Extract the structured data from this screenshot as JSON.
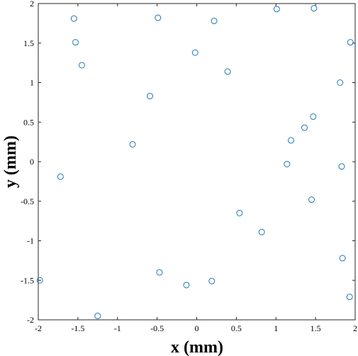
{
  "chart_data": {
    "type": "scatter",
    "xlabel": "x (mm)",
    "ylabel": "y (mm)",
    "xlim": [
      -2,
      2
    ],
    "ylim": [
      -2,
      2
    ],
    "xticks": [
      "-2",
      "-1.5",
      "-1",
      "-0.5",
      "0",
      "0.5",
      "1",
      "1.5",
      "2"
    ],
    "yticks": [
      "-2",
      "-1.5",
      "-1",
      "-0.5",
      "0",
      "0.5",
      "1",
      "1.5",
      "2"
    ],
    "grid": false,
    "marker": "circle-open",
    "color": "#1f77b4",
    "points": [
      {
        "x": -1.55,
        "y": 1.81
      },
      {
        "x": -0.49,
        "y": 1.82
      },
      {
        "x": 0.22,
        "y": 1.78
      },
      {
        "x": 1.01,
        "y": 1.93
      },
      {
        "x": 1.48,
        "y": 1.94
      },
      {
        "x": -1.53,
        "y": 1.51
      },
      {
        "x": 1.94,
        "y": 1.51
      },
      {
        "x": -1.45,
        "y": 1.22
      },
      {
        "x": -0.02,
        "y": 1.38
      },
      {
        "x": 0.39,
        "y": 1.14
      },
      {
        "x": -0.59,
        "y": 0.83
      },
      {
        "x": 1.81,
        "y": 1.0
      },
      {
        "x": 1.47,
        "y": 0.57
      },
      {
        "x": 1.36,
        "y": 0.43
      },
      {
        "x": 1.19,
        "y": 0.27
      },
      {
        "x": -0.81,
        "y": 0.22
      },
      {
        "x": 1.14,
        "y": -0.03
      },
      {
        "x": 1.83,
        "y": -0.06
      },
      {
        "x": -1.72,
        "y": -0.19
      },
      {
        "x": 1.45,
        "y": -0.48
      },
      {
        "x": 0.54,
        "y": -0.65
      },
      {
        "x": 0.82,
        "y": -0.89
      },
      {
        "x": 1.84,
        "y": -1.22
      },
      {
        "x": -0.47,
        "y": -1.4
      },
      {
        "x": -1.98,
        "y": -1.5
      },
      {
        "x": 0.19,
        "y": -1.51
      },
      {
        "x": -0.13,
        "y": -1.56
      },
      {
        "x": 1.93,
        "y": -1.71
      },
      {
        "x": -1.25,
        "y": -1.95
      }
    ]
  }
}
